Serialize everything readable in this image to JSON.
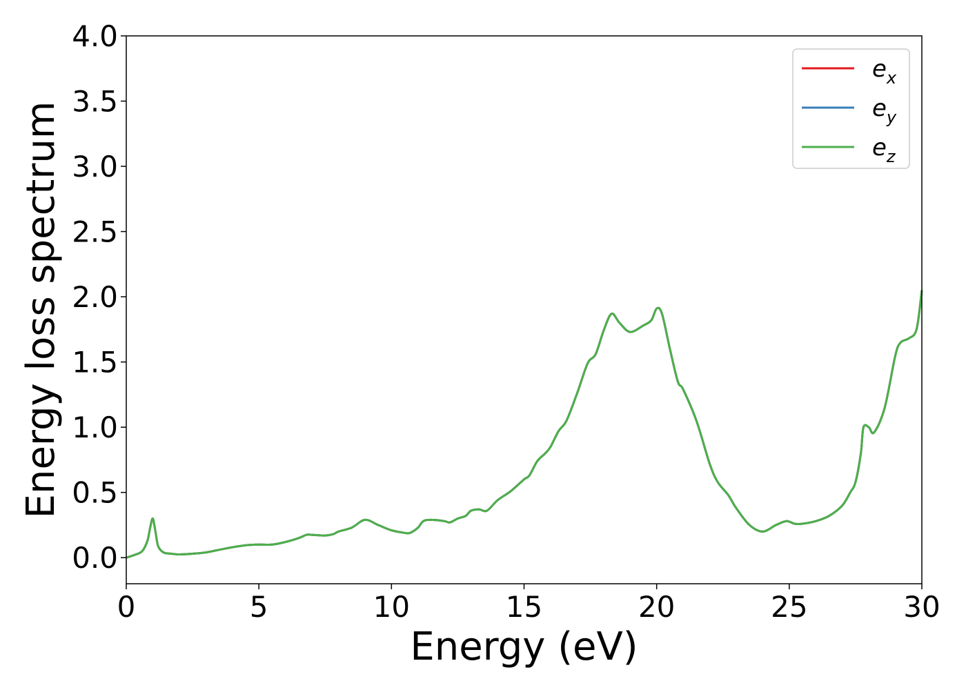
{
  "chart_data": {
    "type": "line",
    "title": "",
    "xlabel": "Energy (eV)",
    "ylabel": "Energy loss spectrum",
    "xlim": [
      0,
      30
    ],
    "ylim": [
      -0.2,
      4.0
    ],
    "xticks": [
      "0",
      "5",
      "10",
      "15",
      "20",
      "25",
      "30"
    ],
    "yticks": [
      "0.0",
      "0.5",
      "1.0",
      "1.5",
      "2.0",
      "2.5",
      "3.0",
      "3.5",
      "4.0"
    ],
    "grid": false,
    "legend_position": "top-right",
    "series": [
      {
        "name": "e",
        "subscript": "x",
        "color": "#e41a1c"
      },
      {
        "name": "e",
        "subscript": "y",
        "color": "#377eb8"
      },
      {
        "name": "e",
        "subscript": "z",
        "color": "#4daf4a"
      }
    ],
    "x": [
      0,
      0.3,
      0.6,
      0.8,
      0.9,
      1.0,
      1.1,
      1.2,
      1.4,
      1.7,
      2.0,
      2.5,
      3.0,
      3.5,
      4.0,
      4.5,
      5.0,
      5.5,
      6.0,
      6.5,
      6.8,
      7.0,
      7.5,
      7.8,
      8.0,
      8.5,
      9.0,
      9.5,
      10.0,
      10.5,
      10.7,
      11.0,
      11.2,
      11.5,
      12.0,
      12.2,
      12.5,
      12.8,
      13.0,
      13.3,
      13.6,
      14.0,
      14.5,
      15.0,
      15.2,
      15.5,
      15.8,
      16.0,
      16.3,
      16.6,
      17.0,
      17.4,
      17.7,
      18.0,
      18.3,
      18.6,
      19.0,
      19.5,
      19.8,
      20.0,
      20.2,
      20.5,
      20.8,
      21.0,
      21.5,
      22.0,
      22.3,
      22.7,
      23.0,
      23.5,
      24.0,
      24.5,
      24.9,
      25.2,
      25.5,
      26.0,
      26.5,
      27.0,
      27.3,
      27.5,
      27.7,
      27.8,
      28.0,
      28.2,
      28.6,
      29.0,
      29.2,
      29.5,
      29.8,
      30.0
    ],
    "y_values": [
      0.0,
      0.02,
      0.05,
      0.13,
      0.23,
      0.3,
      0.2,
      0.09,
      0.04,
      0.03,
      0.025,
      0.03,
      0.04,
      0.06,
      0.08,
      0.095,
      0.1,
      0.1,
      0.12,
      0.15,
      0.175,
      0.175,
      0.17,
      0.18,
      0.2,
      0.23,
      0.29,
      0.25,
      0.21,
      0.19,
      0.19,
      0.23,
      0.28,
      0.29,
      0.28,
      0.27,
      0.3,
      0.32,
      0.36,
      0.37,
      0.36,
      0.44,
      0.51,
      0.6,
      0.63,
      0.74,
      0.8,
      0.85,
      0.97,
      1.05,
      1.26,
      1.49,
      1.56,
      1.74,
      1.87,
      1.8,
      1.73,
      1.78,
      1.82,
      1.91,
      1.87,
      1.6,
      1.35,
      1.29,
      1.05,
      0.72,
      0.58,
      0.48,
      0.38,
      0.25,
      0.2,
      0.25,
      0.28,
      0.26,
      0.26,
      0.28,
      0.32,
      0.4,
      0.5,
      0.58,
      0.8,
      1.0,
      1.0,
      0.96,
      1.15,
      1.55,
      1.65,
      1.68,
      1.75,
      2.05
    ]
  }
}
